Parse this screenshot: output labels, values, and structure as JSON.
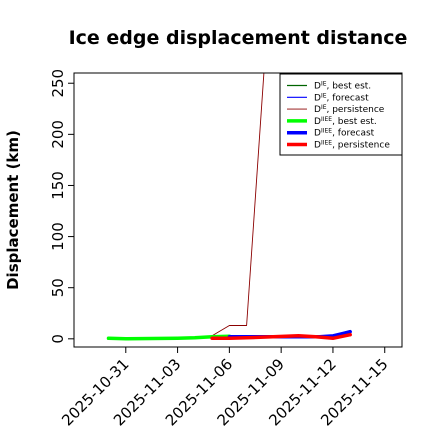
{
  "chart_data": {
    "type": "line",
    "title": "Ice edge displacement distance",
    "xlabel": "",
    "ylabel": "Displacement (km)",
    "xlim": [
      "2025-10-28",
      "2025-11-16"
    ],
    "ylim": [
      -8,
      260
    ],
    "y_ticks": [
      0,
      50,
      100,
      150,
      200,
      250
    ],
    "x_ticks": [
      {
        "label": "2025-10-31",
        "value": "2025-10-31",
        "color": "#000000"
      },
      {
        "label": "2025-11-03",
        "value": "2025-11-03",
        "color": "#000000"
      },
      {
        "label": "2025-11-06",
        "value": "2025-11-06",
        "color": "#228B22"
      },
      {
        "label": "2025-11-09",
        "value": "2025-11-09",
        "color": "#000000"
      },
      {
        "label": "2025-11-12",
        "value": "2025-11-12",
        "color": "#000000"
      },
      {
        "label": "2025-11-15",
        "value": "2025-11-15",
        "color": "#000000"
      }
    ],
    "grid": false,
    "legend_position": "top-right",
    "series": [
      {
        "name": "D^IE, best est.",
        "legend_main": "D",
        "legend_sup": "IE",
        "legend_rest": ", best est.",
        "color": "#006400",
        "width": 1.2,
        "points": [
          [
            "2025-10-30",
            1
          ],
          [
            "2025-10-31",
            0.5
          ],
          [
            "2025-11-03",
            1
          ],
          [
            "2025-11-04",
            1.5
          ],
          [
            "2025-11-05",
            2.5
          ],
          [
            "2025-11-06",
            3
          ],
          [
            "2025-11-07",
            2.5
          ],
          [
            "2025-11-08",
            2.5
          ],
          [
            "2025-11-09",
            3
          ],
          [
            "2025-11-10",
            3
          ],
          [
            "2025-11-11",
            3
          ],
          [
            "2025-11-12",
            3
          ],
          [
            "2025-11-13",
            3
          ]
        ]
      },
      {
        "name": "D^IE, forecast",
        "legend_main": "D",
        "legend_sup": "IE",
        "legend_rest": ", forecast",
        "color": "#0000FF",
        "width": 1.2,
        "points": [
          [
            "2025-11-05",
            1
          ],
          [
            "2025-11-06",
            1.5
          ],
          [
            "2025-11-07",
            1
          ],
          [
            "2025-11-11",
            3
          ],
          [
            "2025-11-12",
            4
          ],
          [
            "2025-11-13",
            8
          ]
        ]
      },
      {
        "name": "D^IE, persistence",
        "legend_main": "D",
        "legend_sup": "IE",
        "legend_rest": ", persistence",
        "color": "#8B0000",
        "width": 0.9,
        "points": [
          [
            "2025-11-05",
            3
          ],
          [
            "2025-11-06",
            13
          ],
          [
            "2025-11-07",
            13
          ],
          [
            "2025-11-08",
            260
          ]
        ]
      },
      {
        "name": "D^IIEE, best est.",
        "legend_main": "D",
        "legend_sup": "IIEE",
        "legend_rest": ", best est.",
        "color": "#00FF00",
        "width": 3.5,
        "points": [
          [
            "2025-10-30",
            0.5
          ],
          [
            "2025-10-31",
            0
          ],
          [
            "2025-11-03",
            0.5
          ],
          [
            "2025-11-04",
            1
          ],
          [
            "2025-11-05",
            2
          ],
          [
            "2025-11-06",
            2.5
          ]
        ]
      },
      {
        "name": "D^IIEE, forecast",
        "legend_main": "D",
        "legend_sup": "IIEE",
        "legend_rest": ", forecast",
        "color": "#0000FF",
        "width": 3.5,
        "points": [
          [
            "2025-11-06",
            2
          ],
          [
            "2025-11-07",
            2
          ],
          [
            "2025-11-11",
            2
          ],
          [
            "2025-11-12",
            2
          ],
          [
            "2025-11-13",
            7
          ]
        ]
      },
      {
        "name": "D^IIEE, persistence",
        "legend_main": "D",
        "legend_sup": "IIEE",
        "legend_rest": ", persistence",
        "color": "#FF0000",
        "width": 3.5,
        "points": [
          [
            "2025-11-05",
            0.5
          ],
          [
            "2025-11-06",
            0.5
          ],
          [
            "2025-11-07",
            1
          ],
          [
            "2025-11-10",
            3
          ],
          [
            "2025-11-11",
            2
          ],
          [
            "2025-11-12",
            0.5
          ],
          [
            "2025-11-13",
            4
          ]
        ]
      }
    ]
  }
}
